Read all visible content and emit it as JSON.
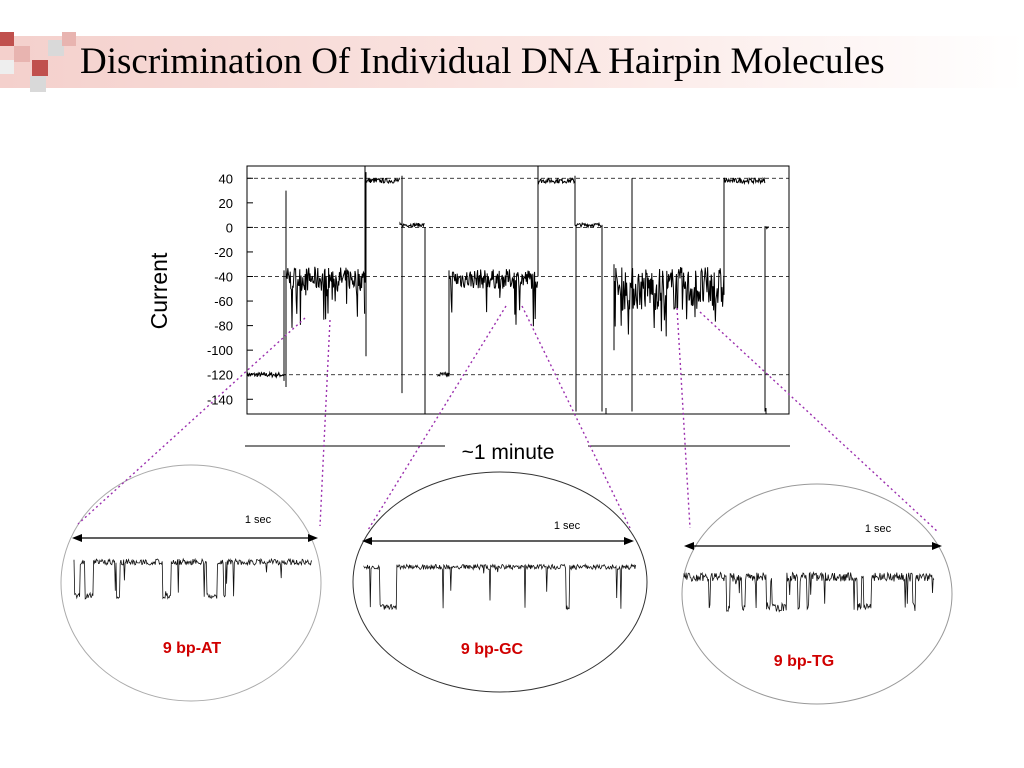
{
  "slide": {
    "title": "Discrimination Of Individual DNA Hairpin Molecules",
    "accent_color": "#c0504d",
    "zoom_line_color": "#9b2fae"
  },
  "chart_data": [
    {
      "type": "line",
      "title": "",
      "ylabel": "Current",
      "xlabel": "~1 minute",
      "y_ticks": [
        40,
        20,
        0,
        -20,
        -40,
        -60,
        -80,
        -100,
        -120,
        -140
      ],
      "ylim": [
        -152,
        50
      ],
      "reference_lines": [
        40,
        0,
        -40,
        -120
      ],
      "grid": false,
      "series": [
        {
          "values": []
        }
      ]
    },
    {
      "type": "line",
      "title": "9 bp-AT",
      "scale_label": "1 sec",
      "series": [
        {
          "values": []
        }
      ]
    },
    {
      "type": "line",
      "title": "9 bp-GC",
      "scale_label": "1 sec",
      "series": [
        {
          "values": []
        }
      ]
    },
    {
      "type": "line",
      "title": "9 bp-TG",
      "scale_label": "1 sec",
      "series": [
        {
          "values": []
        }
      ]
    }
  ]
}
